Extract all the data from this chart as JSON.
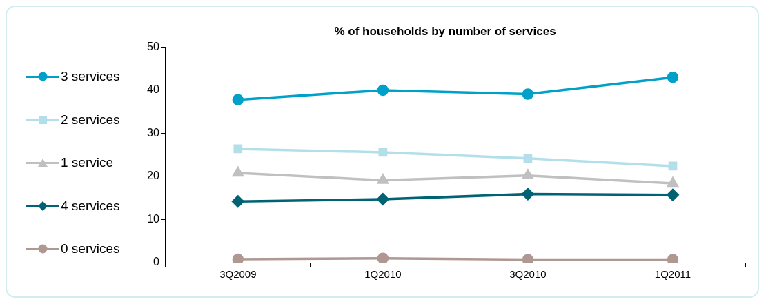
{
  "chart_data": {
    "type": "line",
    "title": "% of households by number of services",
    "categories": [
      "3Q2009",
      "1Q2010",
      "3Q2010",
      "1Q2011"
    ],
    "ylim": [
      0,
      50
    ],
    "yticks": [
      0,
      10,
      20,
      30,
      40,
      50
    ],
    "grid": false,
    "legend": "left",
    "line_style": "solid",
    "series": [
      {
        "name": "3 services",
        "color": "#00a0c8",
        "marker": "circle",
        "values": [
          37.8,
          40.0,
          39.1,
          43.0
        ]
      },
      {
        "name": "2 services",
        "color": "#b3dfea",
        "marker": "square",
        "values": [
          26.4,
          25.6,
          24.2,
          22.4
        ]
      },
      {
        "name": "1 service",
        "color": "#c0c0c0",
        "marker": "triangle",
        "values": [
          20.8,
          19.1,
          20.2,
          18.4
        ]
      },
      {
        "name": "4 services",
        "color": "#006374",
        "marker": "diamond",
        "values": [
          14.2,
          14.7,
          15.9,
          15.7
        ]
      },
      {
        "name": "0 services",
        "color": "#b09892",
        "marker": "circle",
        "values": [
          0.8,
          1.0,
          0.7,
          0.7
        ]
      }
    ]
  }
}
